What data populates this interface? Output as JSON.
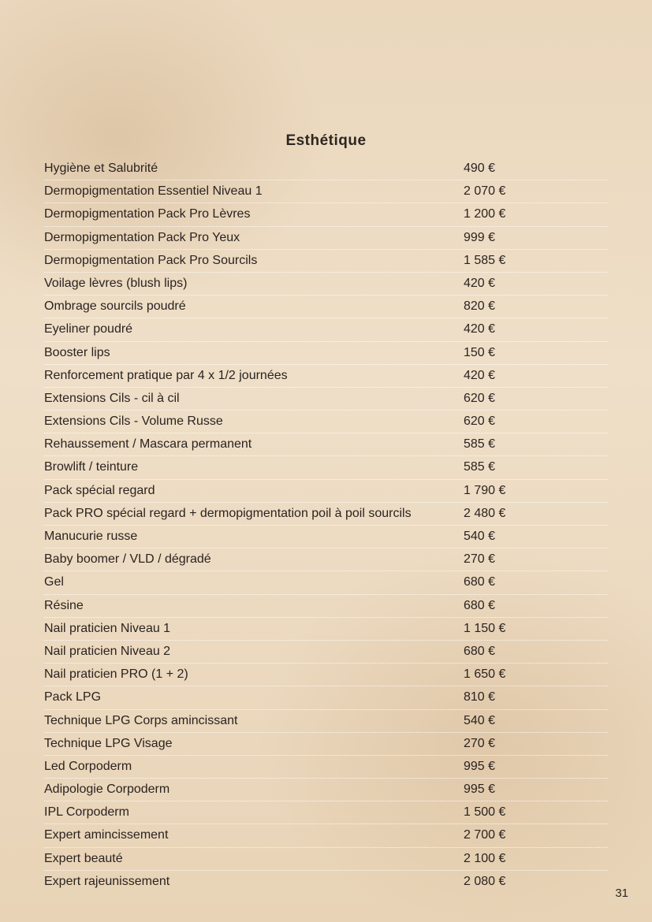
{
  "title": "Esthétique",
  "page_number": "31",
  "currency": "€",
  "style": {
    "title_fontsize": 19,
    "row_fontsize": 16,
    "text_color": "#2a2320",
    "row_border_color": "rgba(255,255,255,0.85)",
    "background_gradient": [
      "#ead7bc",
      "#efdfc8",
      "#e8d3b6"
    ]
  },
  "rows": [
    {
      "label": "Hygiène et Salubrité",
      "price": "490 €"
    },
    {
      "label": "Dermopigmentation Essentiel Niveau 1",
      "price": "2 070 €"
    },
    {
      "label": "Dermopigmentation Pack Pro Lèvres",
      "price": "1 200 €"
    },
    {
      "label": "Dermopigmentation Pack Pro Yeux",
      "price": "999 €"
    },
    {
      "label": "Dermopigmentation Pack Pro Sourcils",
      "price": "1 585 €"
    },
    {
      "label": "Voilage lèvres (blush lips)",
      "price": "420 €"
    },
    {
      "label": "Ombrage sourcils poudré",
      "price": "820 €"
    },
    {
      "label": "Eyeliner poudré",
      "price": "420 €"
    },
    {
      "label": "Booster lips",
      "price": "150 €"
    },
    {
      "label": "Renforcement pratique par 4 x 1/2 journées",
      "price": "420 €"
    },
    {
      "label": "Extensions Cils - cil à cil",
      "price": "620 €"
    },
    {
      "label": "Extensions Cils - Volume Russe",
      "price": "620 €"
    },
    {
      "label": "Rehaussement / Mascara permanent",
      "price": "585 €"
    },
    {
      "label": "Browlift / teinture",
      "price": "585 €"
    },
    {
      "label": "Pack spécial regard",
      "price": "1 790 €"
    },
    {
      "label": "Pack PRO spécial regard + dermopigmentation poil à poil sourcils",
      "price": "2 480 €"
    },
    {
      "label": "Manucurie russe",
      "price": "540 €"
    },
    {
      "label": "Baby boomer / VLD / dégradé",
      "price": "270 €"
    },
    {
      "label": "Gel",
      "price": "680 €"
    },
    {
      "label": "Résine",
      "price": "680 €"
    },
    {
      "label": "Nail praticien Niveau 1",
      "price": "1 150 €"
    },
    {
      "label": "Nail praticien Niveau 2",
      "price": "680 €"
    },
    {
      "label": "Nail praticien PRO (1 + 2)",
      "price": "1 650 €"
    },
    {
      "label": "Pack LPG",
      "price": "810 €"
    },
    {
      "label": "Technique LPG Corps amincissant",
      "price": "540 €"
    },
    {
      "label": "Technique LPG Visage",
      "price": "270 €"
    },
    {
      "label": "Led Corpoderm",
      "price": "995 €"
    },
    {
      "label": "Adipologie Corpoderm",
      "price": "995 €"
    },
    {
      "label": "IPL Corpoderm",
      "price": "1 500 €"
    },
    {
      "label": "Expert amincissement",
      "price": "2 700 €"
    },
    {
      "label": "Expert beauté",
      "price": "2 100 €"
    },
    {
      "label": "Expert rajeunissement",
      "price": "2 080 €"
    }
  ]
}
